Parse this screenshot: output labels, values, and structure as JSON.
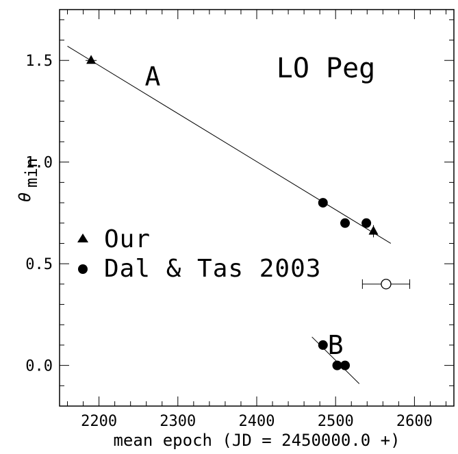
{
  "chart_data": {
    "type": "scatter",
    "title": "LO Peg",
    "xlabel": "mean epoch (JD = 2450000.0 +)",
    "ylabel": "θ",
    "ylabel_subscript": "min",
    "xlim": [
      2150,
      2650
    ],
    "ylim": [
      -0.2,
      1.75
    ],
    "x_major_ticks": [
      2200,
      2300,
      2400,
      2500,
      2600
    ],
    "y_major_ticks": [
      0.0,
      0.5,
      1.0,
      1.5
    ],
    "x_tick_labels": [
      "2200",
      "2300",
      "2400",
      "2500",
      "2600"
    ],
    "y_tick_labels": [
      "0.0",
      "0.5",
      "1.0",
      "1.5"
    ],
    "grid": false,
    "legend_position": "left",
    "series": [
      {
        "name": "Our",
        "marker": "filled-triangle",
        "points": [
          {
            "x": 2190,
            "y": 1.5,
            "xerr": 7,
            "yerr": 0
          },
          {
            "x": 2548,
            "y": 0.66,
            "xerr": 0,
            "yerr": 0.03
          }
        ]
      },
      {
        "name": "Dal & Tas 2003",
        "marker": "filled-circle",
        "points": [
          {
            "x": 2484,
            "y": 0.8
          },
          {
            "x": 2512,
            "y": 0.7
          },
          {
            "x": 2539,
            "y": 0.7
          },
          {
            "x": 2484,
            "y": 0.1
          },
          {
            "x": 2502,
            "y": 0.0
          },
          {
            "x": 2512,
            "y": 0.0
          }
        ]
      },
      {
        "name": "",
        "marker": "open-circle",
        "points": [
          {
            "x": 2564,
            "y": 0.4,
            "xerr": 30
          }
        ]
      }
    ],
    "fit_lines": [
      {
        "label": "A",
        "x": [
          2160,
          2570
        ],
        "y": [
          1.57,
          0.6
        ]
      },
      {
        "label": "B",
        "x": [
          2470,
          2530
        ],
        "y": [
          0.14,
          -0.09
        ]
      }
    ],
    "annotations": [
      {
        "text": "A",
        "x": 2268,
        "y": 1.42,
        "size": "large"
      },
      {
        "text": "B",
        "x": 2500,
        "y": 0.1,
        "size": "large"
      }
    ],
    "legend": [
      {
        "marker": "filled-triangle",
        "label": "Our"
      },
      {
        "marker": "filled-circle",
        "label": "Dal & Tas 2003"
      }
    ]
  }
}
